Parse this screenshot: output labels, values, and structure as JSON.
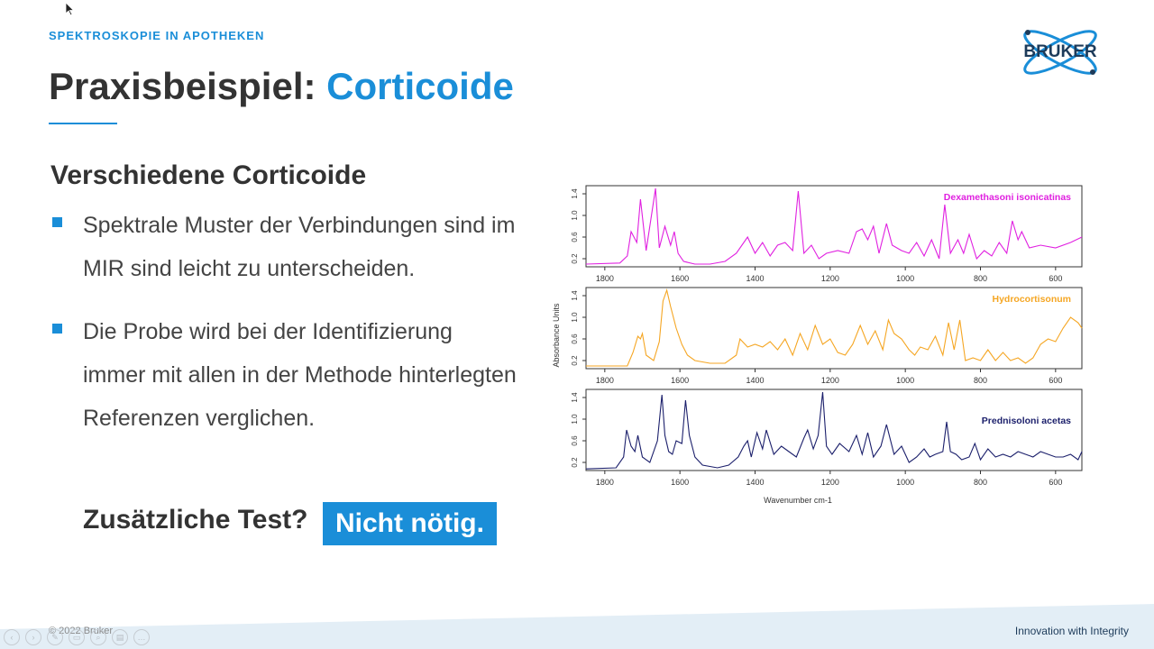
{
  "header": {
    "section": "SPEKTROSKOPIE IN APOTHEKEN",
    "title_prefix": "Praxisbeispiel: ",
    "title_accent": "Corticoide",
    "logo_text": "BRUKER"
  },
  "content": {
    "subtitle": "Verschiedene Corticoide",
    "bullets": [
      {
        "text": "Spektrale Muster der Verbindungen sind im MIR sind leicht zu unterscheiden."
      },
      {
        "text": "Die Probe wird bei der Identifizierung immer mit allen in der Methode hinterlegten Referenzen verglichen."
      }
    ],
    "question": "Zusätzliche Test?",
    "answer": "Nicht nötig."
  },
  "footer": {
    "copyright": "© 2022 Bruker",
    "tagline": "Innovation with Integrity"
  },
  "controls": [
    "prev-icon",
    "next-icon",
    "pen-icon",
    "slides-icon",
    "zoom-icon",
    "subtitles-icon",
    "more-icon"
  ],
  "colors": {
    "accent": "#1a8ed8",
    "text": "#333333",
    "dexa": "#e020e0",
    "hydro": "#f5a623",
    "pred": "#1b1f6b"
  },
  "chart_data": {
    "type": "line",
    "xlabel": "Wavenumber cm-1",
    "ylabel": "Absorbance Units",
    "xlim": [
      1850,
      530
    ],
    "xticks": [
      1800,
      1600,
      1400,
      1200,
      1000,
      800,
      600
    ],
    "yticks": [
      0.2,
      0.6,
      1.0,
      1.4
    ],
    "ylim": [
      0.05,
      1.55
    ],
    "series": [
      {
        "name": "Dexamethasoni isonicatinas",
        "color": "#e020e0",
        "x": [
          1850,
          1760,
          1740,
          1730,
          1715,
          1705,
          1690,
          1665,
          1655,
          1640,
          1625,
          1615,
          1605,
          1590,
          1560,
          1520,
          1480,
          1450,
          1420,
          1400,
          1380,
          1360,
          1340,
          1320,
          1300,
          1285,
          1270,
          1250,
          1230,
          1210,
          1180,
          1150,
          1130,
          1115,
          1100,
          1085,
          1070,
          1050,
          1035,
          1010,
          990,
          970,
          950,
          930,
          910,
          895,
          880,
          860,
          845,
          830,
          810,
          790,
          770,
          750,
          730,
          715,
          700,
          690,
          670,
          640,
          600,
          560,
          530
        ],
        "y": [
          0.1,
          0.12,
          0.25,
          0.7,
          0.5,
          1.3,
          0.35,
          1.5,
          0.4,
          0.8,
          0.45,
          0.7,
          0.3,
          0.15,
          0.1,
          0.1,
          0.15,
          0.3,
          0.6,
          0.3,
          0.5,
          0.25,
          0.45,
          0.5,
          0.35,
          1.45,
          0.3,
          0.45,
          0.2,
          0.3,
          0.35,
          0.3,
          0.7,
          0.75,
          0.55,
          0.8,
          0.3,
          0.85,
          0.45,
          0.35,
          0.3,
          0.5,
          0.25,
          0.55,
          0.2,
          1.2,
          0.3,
          0.55,
          0.3,
          0.65,
          0.2,
          0.35,
          0.25,
          0.5,
          0.3,
          0.9,
          0.55,
          0.7,
          0.4,
          0.45,
          0.4,
          0.5,
          0.6
        ]
      },
      {
        "name": "Hydrocortisonum",
        "color": "#f5a623",
        "x": [
          1850,
          1740,
          1725,
          1712,
          1705,
          1700,
          1690,
          1670,
          1655,
          1645,
          1635,
          1625,
          1610,
          1595,
          1580,
          1560,
          1520,
          1480,
          1450,
          1440,
          1420,
          1400,
          1380,
          1360,
          1340,
          1320,
          1300,
          1280,
          1260,
          1240,
          1220,
          1200,
          1180,
          1160,
          1140,
          1120,
          1100,
          1080,
          1060,
          1045,
          1030,
          1010,
          990,
          975,
          960,
          940,
          920,
          900,
          885,
          870,
          855,
          840,
          820,
          800,
          780,
          760,
          740,
          720,
          700,
          680,
          660,
          640,
          620,
          600,
          580,
          560,
          540,
          530
        ],
        "y": [
          0.1,
          0.1,
          0.35,
          0.65,
          0.6,
          0.7,
          0.3,
          0.2,
          0.55,
          1.3,
          1.5,
          1.2,
          0.8,
          0.5,
          0.3,
          0.2,
          0.15,
          0.15,
          0.3,
          0.6,
          0.45,
          0.5,
          0.45,
          0.55,
          0.4,
          0.6,
          0.3,
          0.7,
          0.4,
          0.85,
          0.5,
          0.6,
          0.35,
          0.3,
          0.5,
          0.85,
          0.5,
          0.75,
          0.4,
          0.95,
          0.7,
          0.6,
          0.4,
          0.3,
          0.45,
          0.4,
          0.65,
          0.3,
          0.9,
          0.4,
          0.95,
          0.2,
          0.25,
          0.2,
          0.4,
          0.2,
          0.35,
          0.2,
          0.25,
          0.15,
          0.25,
          0.5,
          0.6,
          0.55,
          0.8,
          1.0,
          0.9,
          0.8
        ]
      },
      {
        "name": "Prednisoloni acetas",
        "color": "#1b1f6b",
        "x": [
          1850,
          1770,
          1750,
          1742,
          1730,
          1720,
          1712,
          1700,
          1680,
          1660,
          1648,
          1640,
          1630,
          1620,
          1610,
          1595,
          1585,
          1575,
          1560,
          1540,
          1500,
          1470,
          1445,
          1430,
          1420,
          1410,
          1395,
          1380,
          1370,
          1350,
          1330,
          1310,
          1290,
          1270,
          1260,
          1245,
          1232,
          1220,
          1210,
          1195,
          1175,
          1150,
          1130,
          1115,
          1100,
          1085,
          1065,
          1050,
          1030,
          1010,
          990,
          970,
          950,
          935,
          920,
          900,
          890,
          880,
          865,
          850,
          830,
          815,
          800,
          780,
          760,
          740,
          720,
          700,
          680,
          660,
          640,
          620,
          600,
          580,
          560,
          540,
          530
        ],
        "y": [
          0.08,
          0.1,
          0.3,
          0.8,
          0.5,
          0.4,
          0.7,
          0.3,
          0.2,
          0.6,
          1.45,
          0.7,
          0.4,
          0.35,
          0.6,
          0.55,
          1.35,
          0.7,
          0.3,
          0.15,
          0.1,
          0.15,
          0.3,
          0.5,
          0.6,
          0.3,
          0.75,
          0.45,
          0.8,
          0.35,
          0.5,
          0.4,
          0.3,
          0.65,
          0.8,
          0.45,
          0.7,
          1.5,
          0.5,
          0.35,
          0.55,
          0.4,
          0.7,
          0.35,
          0.75,
          0.3,
          0.5,
          0.9,
          0.35,
          0.5,
          0.2,
          0.3,
          0.45,
          0.3,
          0.35,
          0.4,
          0.95,
          0.4,
          0.35,
          0.25,
          0.3,
          0.55,
          0.25,
          0.45,
          0.3,
          0.35,
          0.3,
          0.4,
          0.35,
          0.3,
          0.4,
          0.35,
          0.3,
          0.3,
          0.35,
          0.25,
          0.4
        ]
      }
    ]
  }
}
